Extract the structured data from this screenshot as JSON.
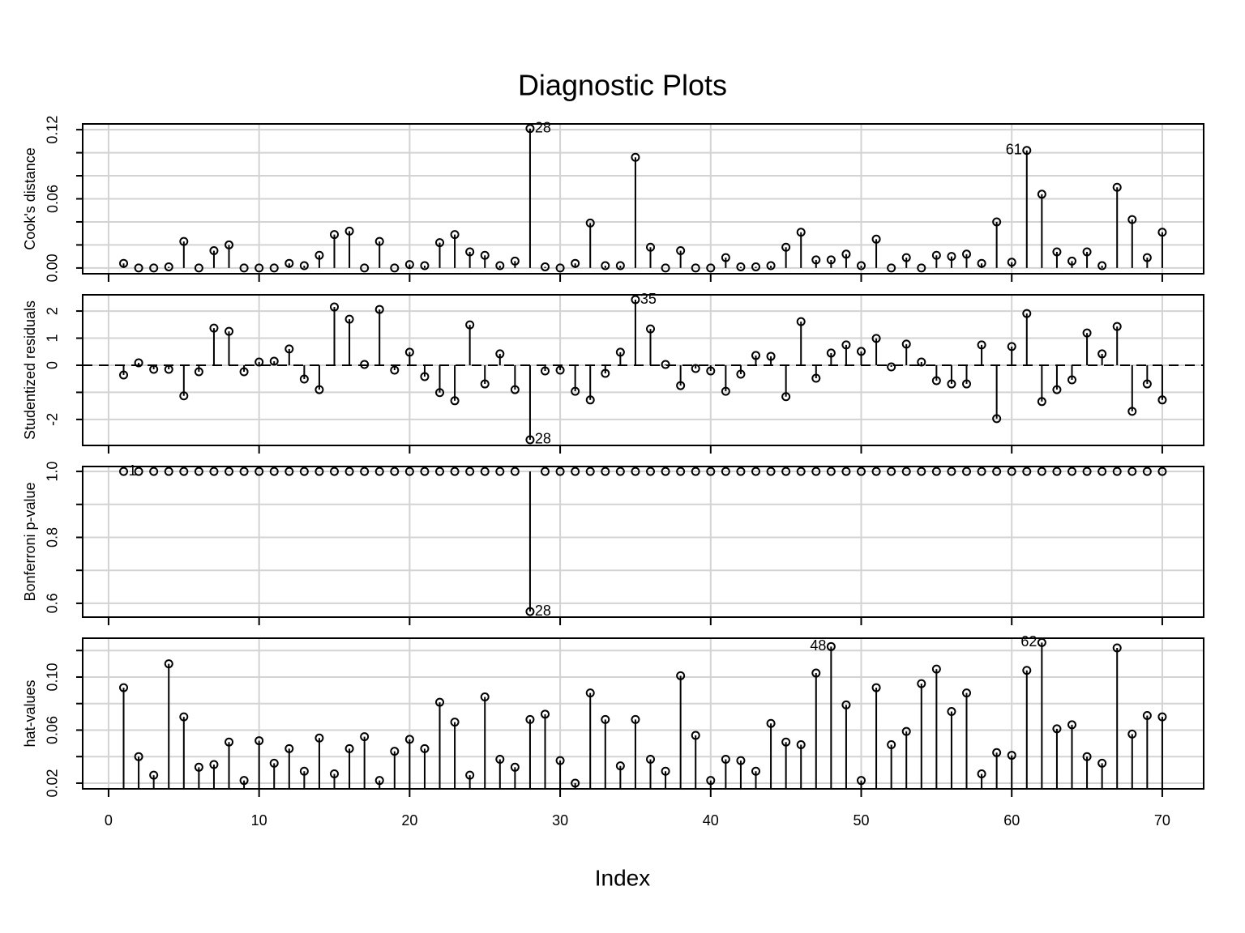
{
  "title": "Diagnostic Plots",
  "x_label": "Index",
  "xlim": [
    -1.72,
    72.75
  ],
  "xticks": [
    0,
    10,
    20,
    30,
    40,
    50,
    60,
    70
  ],
  "grid": true,
  "chart_data": [
    {
      "type": "stem",
      "y_label": "Cook's distance",
      "color": "#000000",
      "stem_base": 0,
      "x": [
        1,
        2,
        3,
        4,
        5,
        6,
        7,
        8,
        9,
        10,
        11,
        12,
        13,
        14,
        15,
        16,
        17,
        18,
        19,
        20,
        21,
        22,
        23,
        24,
        25,
        26,
        27,
        28,
        29,
        30,
        31,
        32,
        33,
        34,
        35,
        36,
        37,
        38,
        39,
        40,
        41,
        42,
        43,
        44,
        45,
        46,
        47,
        48,
        49,
        50,
        51,
        52,
        53,
        54,
        55,
        56,
        57,
        58,
        59,
        60,
        61,
        62,
        63,
        64,
        65,
        66,
        67,
        68,
        69,
        70
      ],
      "values": [
        0.004,
        0,
        0,
        0.001,
        0.023,
        0,
        0.015,
        0.02,
        0,
        0,
        0,
        0.004,
        0.002,
        0.011,
        0.029,
        0.032,
        0,
        0.023,
        0,
        0.003,
        0.002,
        0.022,
        0.029,
        0.014,
        0.011,
        0.002,
        0.006,
        0.121,
        0.001,
        0,
        0.004,
        0.039,
        0.002,
        0.002,
        0.096,
        0.018,
        0,
        0.015,
        0,
        0,
        0.009,
        0.001,
        0.001,
        0.002,
        0.018,
        0.031,
        0.007,
        0.007,
        0.012,
        0.002,
        0.025,
        0,
        0.009,
        0,
        0.011,
        0.01,
        0.012,
        0.004,
        0.04,
        0.005,
        0.102,
        0.064,
        0.014,
        0.006,
        0.014,
        0.002,
        0.07,
        0.042,
        0.009,
        0.031
      ],
      "ylim": [
        -0.005,
        0.125
      ],
      "yticks": [
        {
          "value": 0,
          "label": "0.00"
        },
        0.06,
        0.12
      ],
      "yminor": [
        0.02,
        0.04,
        0.08,
        0.1
      ],
      "point_labels": [
        {
          "x": 28,
          "side": "right"
        },
        {
          "x": 61,
          "side": "left"
        }
      ]
    },
    {
      "type": "stem",
      "y_label": "Studentized residuals",
      "color": "#000000",
      "stem_base": 0,
      "hline": 0,
      "hline_style": "dashed",
      "x": [
        1,
        2,
        3,
        4,
        5,
        6,
        7,
        8,
        9,
        10,
        11,
        12,
        13,
        14,
        15,
        16,
        17,
        18,
        19,
        20,
        21,
        22,
        23,
        24,
        25,
        26,
        27,
        28,
        29,
        30,
        31,
        32,
        33,
        34,
        35,
        36,
        37,
        38,
        39,
        40,
        41,
        42,
        43,
        44,
        45,
        46,
        47,
        48,
        49,
        50,
        51,
        52,
        53,
        54,
        55,
        56,
        57,
        58,
        59,
        60,
        61,
        62,
        63,
        64,
        65,
        66,
        67,
        68,
        69,
        70
      ],
      "values": [
        -0.36,
        0.09,
        -0.15,
        -0.15,
        -1.13,
        -0.24,
        1.37,
        1.25,
        -0.24,
        0.12,
        0.15,
        0.6,
        -0.51,
        -0.9,
        2.15,
        1.7,
        0.03,
        2.06,
        -0.18,
        0.48,
        -0.42,
        -1.01,
        -1.31,
        1.49,
        -0.69,
        0.42,
        -0.9,
        -2.75,
        -0.21,
        -0.18,
        -0.96,
        -1.28,
        -0.3,
        0.48,
        2.42,
        1.34,
        0.03,
        -0.75,
        -0.12,
        -0.21,
        -0.96,
        -0.33,
        0.36,
        0.33,
        -1.16,
        1.61,
        -0.48,
        0.45,
        0.75,
        0.51,
        0.99,
        -0.06,
        0.78,
        0.12,
        -0.57,
        -0.69,
        -0.69,
        0.75,
        -1.97,
        0.69,
        1.91,
        -1.34,
        -0.9,
        -0.54,
        1.19,
        0.42,
        1.43,
        -1.7,
        -0.69,
        -1.28
      ],
      "ylim": [
        -2.96,
        2.6
      ],
      "yticks": [
        -2,
        0,
        1,
        2
      ],
      "yminor": [
        -1
      ],
      "point_labels": [
        {
          "x": 35,
          "side": "right"
        },
        {
          "x": 28,
          "side": "right"
        }
      ]
    },
    {
      "type": "stem",
      "y_label": "Bonferroni p-value",
      "color": "#000000",
      "stem_base": 1,
      "x": [
        1,
        2,
        3,
        4,
        5,
        6,
        7,
        8,
        9,
        10,
        11,
        12,
        13,
        14,
        15,
        16,
        17,
        18,
        19,
        20,
        21,
        22,
        23,
        24,
        25,
        26,
        27,
        28,
        29,
        30,
        31,
        32,
        33,
        34,
        35,
        36,
        37,
        38,
        39,
        40,
        41,
        42,
        43,
        44,
        45,
        46,
        47,
        48,
        49,
        50,
        51,
        52,
        53,
        54,
        55,
        56,
        57,
        58,
        59,
        60,
        61,
        62,
        63,
        64,
        65,
        66,
        67,
        68,
        69,
        70
      ],
      "values": [
        1,
        1,
        1,
        1,
        1,
        1,
        1,
        1,
        1,
        1,
        1,
        1,
        1,
        1,
        1,
        1,
        1,
        1,
        1,
        1,
        1,
        1,
        1,
        1,
        1,
        1,
        1,
        0.575,
        1,
        1,
        1,
        1,
        1,
        1,
        1,
        1,
        1,
        1,
        1,
        1,
        1,
        1,
        1,
        1,
        1,
        1,
        1,
        1,
        1,
        1,
        1,
        1,
        1,
        1,
        1,
        1,
        1,
        1,
        1,
        1,
        1,
        1,
        1,
        1,
        1,
        1,
        1,
        1,
        1,
        1
      ],
      "ylim": [
        0.558,
        1.015
      ],
      "yticks": [
        0.6,
        0.8,
        {
          "value": 1,
          "label": "1.0"
        }
      ],
      "yminor": [
        0.7,
        0.9
      ],
      "point_labels": [
        {
          "x": 1,
          "side": "right"
        },
        {
          "x": 28,
          "side": "right"
        }
      ]
    },
    {
      "type": "stem",
      "y_label": "hat-values",
      "color": "#000000",
      "stem_base": 0,
      "x": [
        1,
        2,
        3,
        4,
        5,
        6,
        7,
        8,
        9,
        10,
        11,
        12,
        13,
        14,
        15,
        16,
        17,
        18,
        19,
        20,
        21,
        22,
        23,
        24,
        25,
        26,
        27,
        28,
        29,
        30,
        31,
        32,
        33,
        34,
        35,
        36,
        37,
        38,
        39,
        40,
        41,
        42,
        43,
        44,
        45,
        46,
        47,
        48,
        49,
        50,
        51,
        52,
        53,
        54,
        55,
        56,
        57,
        58,
        59,
        60,
        61,
        62,
        63,
        64,
        65,
        66,
        67,
        68,
        69,
        70
      ],
      "values": [
        0.092,
        0.04,
        0.026,
        0.11,
        0.07,
        0.032,
        0.034,
        0.051,
        0.022,
        0.052,
        0.035,
        0.046,
        0.029,
        0.054,
        0.027,
        0.046,
        0.055,
        0.022,
        0.044,
        0.053,
        0.046,
        0.081,
        0.066,
        0.026,
        0.085,
        0.038,
        0.032,
        0.068,
        0.072,
        0.037,
        0.02,
        0.088,
        0.068,
        0.033,
        0.068,
        0.038,
        0.029,
        0.101,
        0.056,
        0.022,
        0.038,
        0.037,
        0.029,
        0.065,
        0.051,
        0.049,
        0.103,
        0.123,
        0.079,
        0.022,
        0.092,
        0.049,
        0.059,
        0.095,
        0.106,
        0.074,
        0.088,
        0.027,
        0.043,
        0.041,
        0.105,
        0.126,
        0.061,
        0.064,
        0.04,
        0.035,
        0.122,
        0.057,
        0.071,
        0.07
      ],
      "ylim": [
        0.0157,
        0.1293
      ],
      "yticks": [
        0.02,
        0.06,
        {
          "value": 0.1,
          "label": "0.10"
        }
      ],
      "yminor": [
        0.04,
        0.08,
        0.12
      ],
      "point_labels": [
        {
          "x": 48,
          "side": "left"
        },
        {
          "x": 62,
          "side": "left"
        }
      ]
    }
  ]
}
